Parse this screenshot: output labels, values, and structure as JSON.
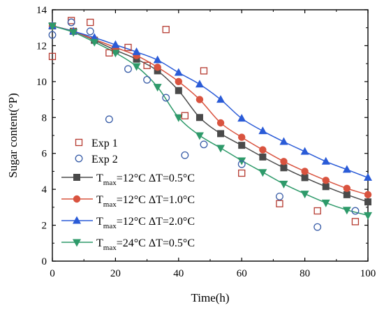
{
  "chart_data": {
    "type": "line",
    "xlabel": "Time(h)",
    "ylabel": "Sugar content(°P)",
    "xlim": [
      0,
      100
    ],
    "ylim": [
      0,
      14
    ],
    "xticks": [
      0,
      20,
      40,
      60,
      80,
      100
    ],
    "yticks": [
      0,
      2,
      4,
      6,
      8,
      10,
      12,
      14
    ],
    "grid": false,
    "legend_position": "bottom-left",
    "scatter_series": [
      {
        "name": "Exp 1",
        "marker": "open-square",
        "color": "#b5392f",
        "x": [
          0,
          6,
          12,
          18,
          24,
          30,
          36,
          42,
          48,
          60,
          72,
          84,
          96
        ],
        "y": [
          11.4,
          13.4,
          13.3,
          11.6,
          11.9,
          10.9,
          12.9,
          8.1,
          10.6,
          4.9,
          3.2,
          2.8,
          2.2
        ]
      },
      {
        "name": "Exp 2",
        "marker": "open-circle",
        "color": "#3a5ea8",
        "x": [
          0,
          6,
          12,
          18,
          24,
          30,
          36,
          42,
          48,
          60,
          72,
          84,
          96
        ],
        "y": [
          12.6,
          13.3,
          12.8,
          7.9,
          10.7,
          10.1,
          9.1,
          5.9,
          6.5,
          5.4,
          3.6,
          1.9,
          2.8
        ]
      }
    ],
    "line_series": [
      {
        "name_main": "T",
        "name_sub": "max",
        "name_rest": "=12°C ΔT=0.5°C",
        "marker": "square",
        "color": "#4a4a4a",
        "x": [
          0,
          6.67,
          13.33,
          20,
          26.67,
          33.33,
          40,
          46.67,
          53.33,
          60,
          66.67,
          73.33,
          80,
          86.67,
          93.33,
          100
        ],
        "y": [
          13.1,
          12.8,
          12.3,
          11.75,
          11.25,
          10.6,
          9.5,
          8.0,
          7.1,
          6.45,
          5.8,
          5.2,
          4.65,
          4.15,
          3.7,
          3.3
        ]
      },
      {
        "name_main": "T",
        "name_sub": "max",
        "name_rest": "=12°C ΔT=1.0°C",
        "marker": "circle",
        "color": "#d9533f",
        "x": [
          0,
          6.67,
          13.33,
          20,
          26.67,
          33.33,
          40,
          46.67,
          53.33,
          60,
          66.67,
          73.33,
          80,
          86.67,
          93.33,
          100
        ],
        "y": [
          13.1,
          12.8,
          12.35,
          11.9,
          11.45,
          10.8,
          10.0,
          9.0,
          7.7,
          6.9,
          6.2,
          5.55,
          5.0,
          4.5,
          4.05,
          3.7
        ]
      },
      {
        "name_main": "T",
        "name_sub": "max",
        "name_rest": "=12°C ΔT=2.0°C",
        "marker": "triangle-up",
        "color": "#2a5bd7",
        "x": [
          0,
          6.67,
          13.33,
          20,
          26.67,
          33.33,
          40,
          46.67,
          53.33,
          60,
          66.67,
          73.33,
          80,
          86.67,
          93.33,
          100
        ],
        "y": [
          13.1,
          12.8,
          12.45,
          12.05,
          11.65,
          11.2,
          10.5,
          9.85,
          9.0,
          7.95,
          7.25,
          6.65,
          6.1,
          5.55,
          5.1,
          4.65
        ]
      },
      {
        "name_main": "T",
        "name_sub": "max",
        "name_rest": "=24°C ΔT=0.5°C",
        "marker": "triangle-down",
        "color": "#2e9a6a",
        "x": [
          0,
          6.67,
          13.33,
          20,
          26.67,
          33.33,
          40,
          46.67,
          53.33,
          60,
          66.67,
          73.33,
          80,
          86.67,
          93.33,
          100
        ],
        "y": [
          13.1,
          12.75,
          12.2,
          11.6,
          10.85,
          9.7,
          8.0,
          7.0,
          6.3,
          5.6,
          4.95,
          4.3,
          3.75,
          3.25,
          2.85,
          2.55
        ]
      }
    ]
  }
}
